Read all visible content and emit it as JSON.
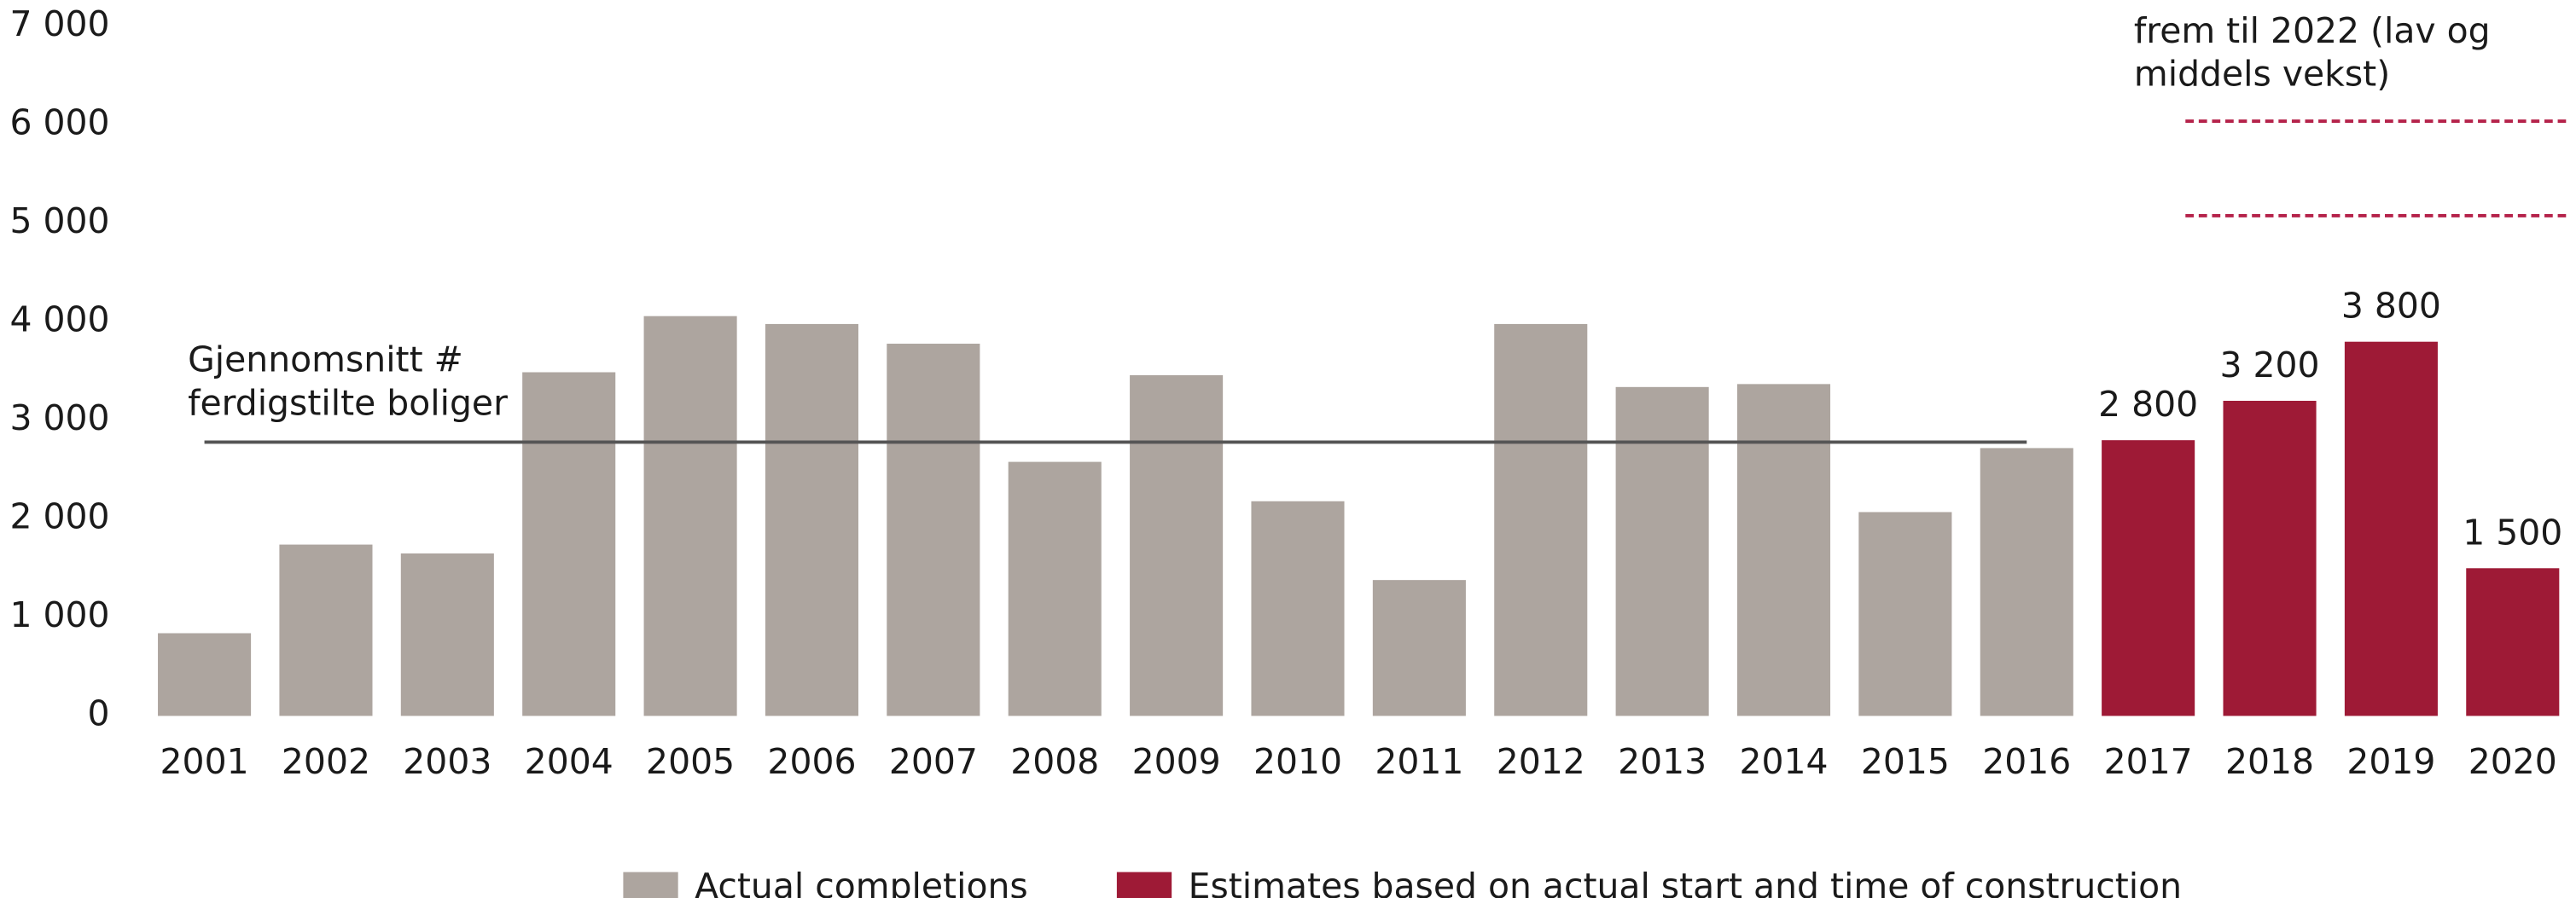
{
  "chart_data": {
    "type": "bar",
    "stacked": false,
    "categories": [
      "2001",
      "2002",
      "2003",
      "2004",
      "2005",
      "2006",
      "2007",
      "2008",
      "2009",
      "2010",
      "2011",
      "2012",
      "2013",
      "2014",
      "2015",
      "2016",
      "2017",
      "2018",
      "2019",
      "2020"
    ],
    "series": [
      {
        "name": "Actual completions",
        "color": "#ada59f",
        "values": [
          840,
          1740,
          1650,
          3490,
          4060,
          3980,
          3780,
          2580,
          3460,
          2180,
          1380,
          3980,
          3340,
          3370,
          2070,
          2720,
          null,
          null,
          null,
          null
        ]
      },
      {
        "name": "Estimates based on actual start and time of construction",
        "color": "#9e1a36",
        "values": [
          null,
          null,
          null,
          null,
          null,
          null,
          null,
          null,
          null,
          null,
          null,
          null,
          null,
          null,
          null,
          null,
          2800,
          3200,
          3800,
          1500
        ],
        "value_labels": [
          null,
          null,
          null,
          null,
          null,
          null,
          null,
          null,
          null,
          null,
          null,
          null,
          null,
          null,
          null,
          null,
          "2 800",
          "3 200",
          "3 800",
          "1 500"
        ]
      }
    ],
    "ylim": [
      0,
      7000
    ],
    "yticks": [
      0,
      {
        "value": 1000,
        "label": "1 000"
      },
      {
        "value": 2000,
        "label": "2 000"
      },
      {
        "value": 3000,
        "label": "3 000"
      },
      {
        "value": 4000,
        "label": "4 000"
      },
      {
        "value": 5000,
        "label": "5 000"
      },
      {
        "value": 6000,
        "label": "6 000"
      },
      {
        "value": 7000,
        "label": "7 000"
      }
    ],
    "grid": false,
    "legend": "bottom",
    "average": {
      "value": 2780,
      "color": "#555555",
      "label": [
        "Gjennomsnitt #",
        "ferdigstilte boliger"
      ]
    },
    "projections": {
      "values": [
        6040,
        5080
      ],
      "color": "#b5224a",
      "label": [
        "frem til 2022 (lav og",
        "middels vekst)"
      ]
    }
  }
}
